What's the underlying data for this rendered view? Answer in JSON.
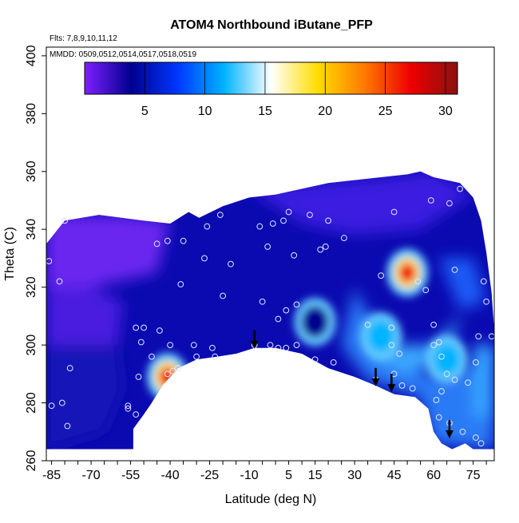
{
  "chart_data": {
    "type": "heatmap",
    "title": "ATOM4 Northbound iButane_PFP",
    "subtitle_flights": "Flts: 7,8,9,10,11,12",
    "subtitle_dates": "MMDD: 0509,0512,0514,0517,0518,0519",
    "xlabel": "Latitude (deg N)",
    "ylabel": "Theta (C)",
    "xlim": [
      -87,
      83
    ],
    "ylim": [
      260,
      403
    ],
    "x_ticks": [
      "-85",
      "-70",
      "-55",
      "-40",
      "-25",
      "-10",
      "5",
      "15",
      "30",
      "45",
      "60",
      "75"
    ],
    "x_tick_values": [
      -85,
      -70,
      -55,
      -40,
      -25,
      -10,
      5,
      15,
      30,
      45,
      60,
      75
    ],
    "y_ticks": [
      "260",
      "280",
      "300",
      "320",
      "340",
      "360",
      "380",
      "400"
    ],
    "y_tick_values": [
      260,
      280,
      300,
      320,
      340,
      360,
      380,
      400
    ],
    "colorbar": {
      "range": [
        0,
        31
      ],
      "ticks": [
        "5",
        "10",
        "15",
        "20",
        "25",
        "30"
      ],
      "tick_values": [
        5,
        10,
        15,
        20,
        25,
        30
      ],
      "colors": [
        "#7f1fff",
        "#00008f",
        "#0037ff",
        "#00b4ff",
        "#ffffff",
        "#ffdd00",
        "#ff7a00",
        "#ee0000",
        "#8b1010"
      ]
    },
    "hotspots": [
      {
        "lat": -41,
        "theta": 289,
        "value": 27
      },
      {
        "lat": 50,
        "theta": 325,
        "value": 29
      },
      {
        "lat": 40,
        "theta": 303,
        "value": 11
      },
      {
        "lat": 65,
        "theta": 295,
        "value": 10
      },
      {
        "lat": 15,
        "theta": 308,
        "value": 5
      }
    ],
    "observations": [
      [
        -86,
        329
      ],
      [
        -82,
        322
      ],
      [
        -80,
        343
      ],
      [
        -85,
        279
      ],
      [
        -81,
        280
      ],
      [
        -79,
        272
      ],
      [
        -78,
        292
      ],
      [
        -56,
        279
      ],
      [
        -56,
        278
      ],
      [
        -53,
        276
      ],
      [
        -52,
        289
      ],
      [
        -51,
        301
      ],
      [
        -53,
        306
      ],
      [
        -50,
        306
      ],
      [
        -47,
        296
      ],
      [
        -44,
        305
      ],
      [
        -41,
        290
      ],
      [
        -40,
        300
      ],
      [
        -39,
        291
      ],
      [
        -37,
        292
      ],
      [
        -31,
        300
      ],
      [
        -30,
        296
      ],
      [
        -24,
        299
      ],
      [
        -23,
        296
      ],
      [
        -41,
        336
      ],
      [
        -45,
        335
      ],
      [
        -35,
        336
      ],
      [
        -26,
        341
      ],
      [
        -21,
        345
      ],
      [
        -20,
        317
      ],
      [
        -17,
        328
      ],
      [
        -36,
        321
      ],
      [
        -27,
        330
      ],
      [
        -6,
        341
      ],
      [
        -3,
        334
      ],
      [
        -1,
        342
      ],
      [
        3,
        343
      ],
      [
        5,
        346
      ],
      [
        7,
        331
      ],
      [
        -5,
        315
      ],
      [
        1,
        309
      ],
      [
        4,
        312
      ],
      [
        8,
        314
      ],
      [
        -8,
        300
      ],
      [
        -2,
        300
      ],
      [
        1,
        299
      ],
      [
        4,
        299
      ],
      [
        8,
        300
      ],
      [
        13,
        345
      ],
      [
        17,
        333
      ],
      [
        19,
        334
      ],
      [
        20,
        343
      ],
      [
        26,
        337
      ],
      [
        15,
        295
      ],
      [
        22,
        294
      ],
      [
        40,
        324
      ],
      [
        45,
        346
      ],
      [
        44,
        306
      ],
      [
        44,
        300
      ],
      [
        47,
        297
      ],
      [
        54,
        322
      ],
      [
        57,
        319
      ],
      [
        59,
        350
      ],
      [
        60,
        307
      ],
      [
        60,
        300
      ],
      [
        62,
        301
      ],
      [
        66,
        349
      ],
      [
        68,
        326
      ],
      [
        63,
        296
      ],
      [
        65,
        290
      ],
      [
        63,
        284
      ],
      [
        61,
        281
      ],
      [
        62,
        275
      ],
      [
        66,
        273
      ],
      [
        68,
        288
      ],
      [
        71,
        270
      ],
      [
        73,
        287
      ],
      [
        76,
        268
      ],
      [
        77,
        303
      ],
      [
        79,
        322
      ],
      [
        80,
        315
      ],
      [
        82,
        303
      ],
      [
        76,
        294
      ],
      [
        78,
        266
      ],
      [
        70,
        354
      ],
      [
        45,
        290
      ],
      [
        48,
        286
      ],
      [
        52,
        285
      ],
      [
        38,
        288
      ],
      [
        35,
        307
      ]
    ],
    "arrows": [
      {
        "lat": -8,
        "theta": 299
      },
      {
        "lat": 38,
        "theta": 286
      },
      {
        "lat": 44,
        "theta": 284
      },
      {
        "lat": 66,
        "theta": 268
      }
    ]
  }
}
